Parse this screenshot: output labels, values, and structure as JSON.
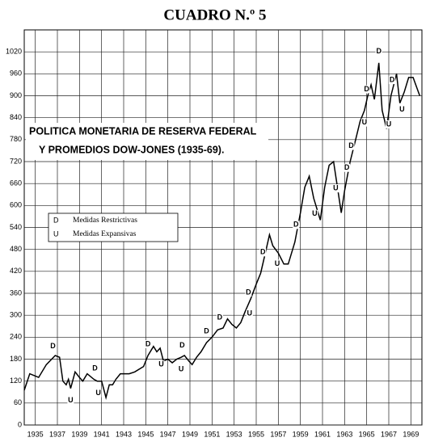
{
  "chart_data": {
    "type": "line",
    "title": "CUADRO N.º 5",
    "subtitle": [
      "POLITICA MONETARIA DE RESERVA FEDERAL",
      "Y PROMEDIOS DOW-JONES (1935-69)."
    ],
    "legend": [
      {
        "symbol": "D",
        "text": "Medidas Restrictivas"
      },
      {
        "symbol": "U",
        "text": "Medidas Expansivas"
      }
    ],
    "color": "#000000",
    "grid": true,
    "xlim": [
      1934,
      1970
    ],
    "xticks": [
      1935,
      1937,
      1939,
      1941,
      1943,
      1945,
      1947,
      1949,
      1951,
      1953,
      1955,
      1957,
      1959,
      1961,
      1963,
      1965,
      1967,
      1969
    ],
    "ylim": [
      0,
      1080
    ],
    "yticks": [
      0,
      60,
      120,
      180,
      240,
      300,
      360,
      420,
      480,
      540,
      600,
      660,
      720,
      780,
      840,
      900,
      960,
      1020
    ],
    "x": [
      1934.0,
      1934.5,
      1935.3,
      1936.0,
      1936.8,
      1937.2,
      1937.5,
      1937.8,
      1938.0,
      1938.2,
      1938.6,
      1939.0,
      1939.3,
      1939.7,
      1940.3,
      1940.6,
      1941.0,
      1941.4,
      1941.7,
      1942.0,
      1942.3,
      1942.7,
      1943.5,
      1944.0,
      1944.8,
      1945.2,
      1945.7,
      1946.0,
      1946.3,
      1946.6,
      1947.0,
      1947.4,
      1947.8,
      1948.2,
      1948.5,
      1948.9,
      1949.2,
      1949.6,
      1950.0,
      1950.5,
      1951.0,
      1951.5,
      1952.0,
      1952.4,
      1952.8,
      1953.2,
      1953.6,
      1954.0,
      1954.5,
      1955.0,
      1955.4,
      1955.9,
      1956.2,
      1956.5,
      1957.0,
      1957.5,
      1957.9,
      1958.5,
      1959.0,
      1959.4,
      1959.8,
      1960.2,
      1960.8,
      1961.2,
      1961.6,
      1962.0,
      1962.3,
      1962.7,
      1963.0,
      1963.5,
      1964.0,
      1964.4,
      1964.8,
      1965.1,
      1965.4,
      1965.7,
      1966.1,
      1966.4,
      1966.8,
      1967.2,
      1967.7,
      1968.0,
      1968.4,
      1968.8,
      1969.2,
      1969.8
    ],
    "values": [
      95,
      140,
      130,
      165,
      190,
      185,
      120,
      110,
      125,
      100,
      145,
      130,
      120,
      140,
      125,
      120,
      120,
      75,
      110,
      110,
      125,
      140,
      140,
      145,
      160,
      190,
      215,
      200,
      210,
      175,
      180,
      170,
      180,
      185,
      190,
      175,
      165,
      185,
      200,
      225,
      240,
      260,
      265,
      290,
      275,
      265,
      280,
      310,
      345,
      385,
      415,
      480,
      520,
      490,
      470,
      440,
      440,
      500,
      580,
      650,
      680,
      620,
      560,
      650,
      710,
      720,
      660,
      580,
      640,
      720,
      780,
      830,
      860,
      900,
      930,
      890,
      990,
      860,
      810,
      900,
      960,
      880,
      910,
      950,
      950,
      900
    ],
    "markers": [
      {
        "label": "D",
        "x": 1936.6
      },
      {
        "label": "D",
        "x": 1940.4
      },
      {
        "label": "D",
        "x": 1945.2
      },
      {
        "label": "D",
        "x": 1948.3
      },
      {
        "label": "D",
        "x": 1950.5
      },
      {
        "label": "D",
        "x": 1951.7
      },
      {
        "label": "D",
        "x": 1954.3
      },
      {
        "label": "D",
        "x": 1955.6
      },
      {
        "label": "D",
        "x": 1958.6
      },
      {
        "label": "D",
        "x": 1963.2
      },
      {
        "label": "D",
        "x": 1963.6
      },
      {
        "label": "D",
        "x": 1965.0
      },
      {
        "label": "D",
        "x": 1966.1
      },
      {
        "label": "D",
        "x": 1967.3
      },
      {
        "label": "U",
        "x": 1938.2
      },
      {
        "label": "U",
        "x": 1940.7
      },
      {
        "label": "U",
        "x": 1946.4
      },
      {
        "label": "U",
        "x": 1948.2
      },
      {
        "label": "U",
        "x": 1954.4
      },
      {
        "label": "U",
        "x": 1956.9
      },
      {
        "label": "U",
        "x": 1960.3
      },
      {
        "label": "U",
        "x": 1962.2
      },
      {
        "label": "U",
        "x": 1964.8
      },
      {
        "label": "U",
        "x": 1967.0
      },
      {
        "label": "U",
        "x": 1968.2
      }
    ]
  }
}
